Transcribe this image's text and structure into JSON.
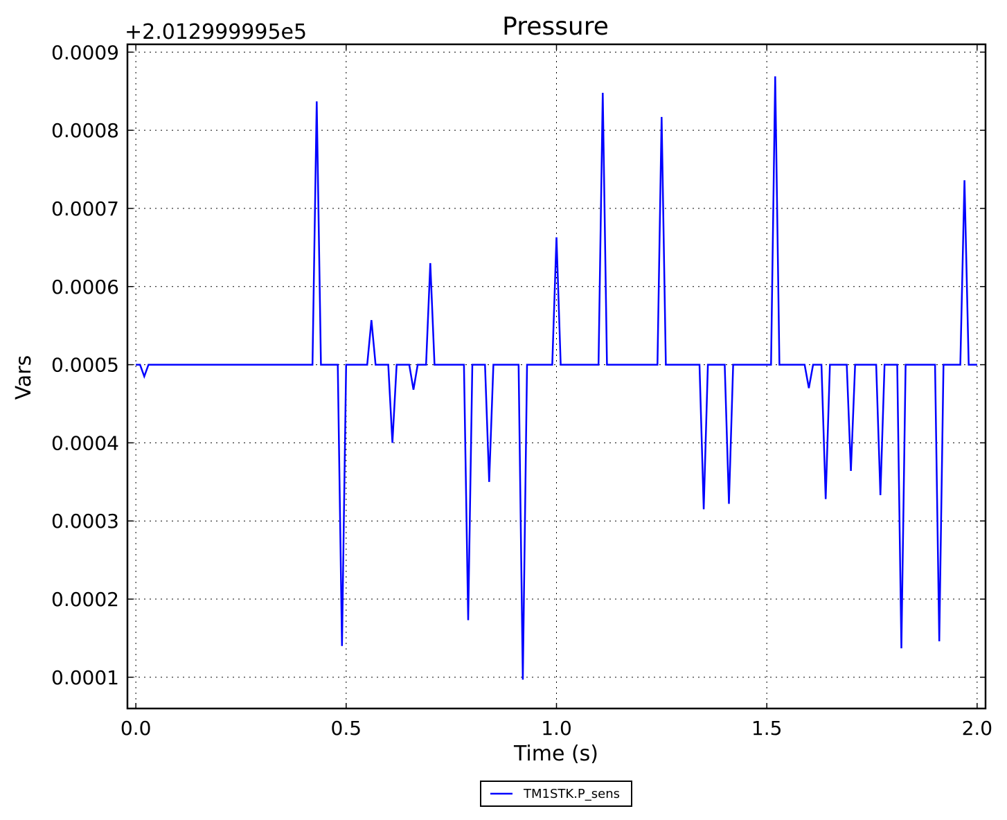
{
  "chart_data": {
    "type": "line",
    "title": "Pressure",
    "xlabel": "Time (s)",
    "ylabel": "Vars",
    "y_offset_text": "+2.012999995e5",
    "xlim": [
      -0.02,
      2.02
    ],
    "ylim": [
      6e-05,
      0.00091
    ],
    "x_ticks": [
      0.0,
      0.5,
      1.0,
      1.5,
      2.0
    ],
    "x_tick_labels": [
      "0.0",
      "0.5",
      "1.0",
      "1.5",
      "2.0"
    ],
    "y_ticks": [
      0.0001,
      0.0002,
      0.0003,
      0.0004,
      0.0005,
      0.0006,
      0.0007,
      0.0008,
      0.0009
    ],
    "y_tick_labels": [
      "0.0001",
      "0.0002",
      "0.0003",
      "0.0004",
      "0.0005",
      "0.0006",
      "0.0007",
      "0.0008",
      "0.0009"
    ],
    "grid": true,
    "legend_position": "bottom-center",
    "series": [
      {
        "name": "TM1STK.P_sens",
        "color": "#0000ff",
        "x": [
          0.0,
          0.01,
          0.02,
          0.03,
          0.42,
          0.43,
          0.44,
          0.48,
          0.49,
          0.5,
          0.55,
          0.56,
          0.57,
          0.6,
          0.61,
          0.62,
          0.65,
          0.66,
          0.67,
          0.69,
          0.7,
          0.71,
          0.78,
          0.79,
          0.8,
          0.83,
          0.84,
          0.85,
          0.91,
          0.92,
          0.93,
          0.99,
          1.0,
          1.01,
          1.1,
          1.11,
          1.12,
          1.24,
          1.25,
          1.26,
          1.34,
          1.35,
          1.36,
          1.4,
          1.41,
          1.42,
          1.51,
          1.52,
          1.53,
          1.59,
          1.6,
          1.61,
          1.63,
          1.64,
          1.65,
          1.69,
          1.7,
          1.71,
          1.76,
          1.77,
          1.78,
          1.81,
          1.82,
          1.83,
          1.9,
          1.91,
          1.92,
          1.96,
          1.97,
          1.98,
          2.0
        ],
        "values": [
          0.0005,
          0.0005,
          0.000485,
          0.0005,
          0.0005,
          0.000837,
          0.0005,
          0.0005,
          0.00014,
          0.0005,
          0.0005,
          0.000557,
          0.0005,
          0.0005,
          0.0004,
          0.0005,
          0.0005,
          0.000468,
          0.0005,
          0.0005,
          0.00063,
          0.0005,
          0.0005,
          0.000173,
          0.0005,
          0.0005,
          0.00035,
          0.0005,
          0.0005,
          9.7e-05,
          0.0005,
          0.0005,
          0.000663,
          0.0005,
          0.0005,
          0.000848,
          0.0005,
          0.0005,
          0.000817,
          0.0005,
          0.0005,
          0.000315,
          0.0005,
          0.0005,
          0.000322,
          0.0005,
          0.0005,
          0.000869,
          0.0005,
          0.0005,
          0.00047,
          0.0005,
          0.0005,
          0.000328,
          0.0005,
          0.0005,
          0.000364,
          0.0005,
          0.0005,
          0.000333,
          0.0005,
          0.0005,
          0.000137,
          0.0005,
          0.0005,
          0.000146,
          0.0005,
          0.0005,
          0.000736,
          0.0005,
          0.0005
        ]
      }
    ]
  }
}
